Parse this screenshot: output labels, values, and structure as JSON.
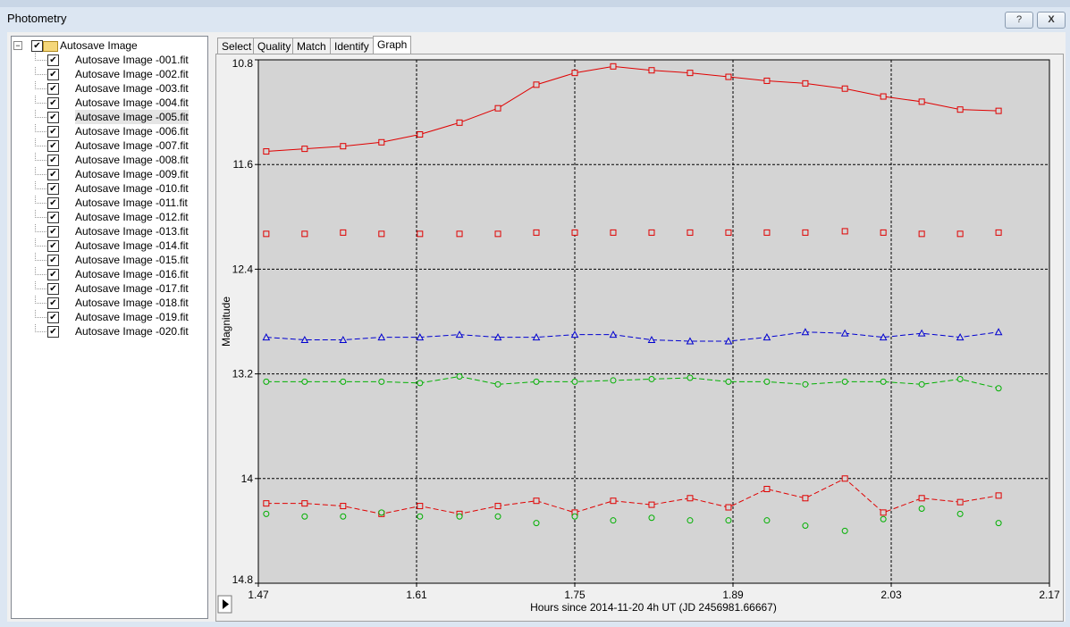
{
  "window": {
    "title": "Photometry",
    "help": "?",
    "close": "X"
  },
  "tree": {
    "root": "Autosave Image",
    "items": [
      "Autosave Image -001.fit",
      "Autosave Image -002.fit",
      "Autosave Image -003.fit",
      "Autosave Image -004.fit",
      "Autosave Image -005.fit",
      "Autosave Image -006.fit",
      "Autosave Image -007.fit",
      "Autosave Image -008.fit",
      "Autosave Image -009.fit",
      "Autosave Image -010.fit",
      "Autosave Image -011.fit",
      "Autosave Image -012.fit",
      "Autosave Image -013.fit",
      "Autosave Image -014.fit",
      "Autosave Image -015.fit",
      "Autosave Image -016.fit",
      "Autosave Image -017.fit",
      "Autosave Image -018.fit",
      "Autosave Image -019.fit",
      "Autosave Image -020.fit"
    ]
  },
  "tabs": [
    "Select",
    "Quality",
    "Match",
    "Identify",
    "Graph"
  ],
  "active_tab": 4,
  "chart_data": {
    "type": "scatter",
    "xlabel": "Hours since 2014-11-20 4h UT (JD 2456981.66667)",
    "ylabel": "Magnitude",
    "x": [
      1.477,
      1.511,
      1.545,
      1.579,
      1.613,
      1.648,
      1.682,
      1.716,
      1.75,
      1.784,
      1.818,
      1.852,
      1.886,
      1.92,
      1.954,
      1.989,
      2.023,
      2.057,
      2.091,
      2.125
    ],
    "xlim": [
      1.47,
      2.17
    ],
    "xticks": [
      1.47,
      1.61,
      1.75,
      1.89,
      2.03,
      2.17
    ],
    "ylim": [
      14.8,
      10.8
    ],
    "yticks": [
      10.8,
      11.6,
      12.4,
      13.2,
      14,
      14.8
    ],
    "y_inverted": true,
    "grid": true,
    "plot_background": "#d4d4d4",
    "series": [
      {
        "color": "#e00000",
        "marker": "square",
        "line": "solid",
        "values": [
          11.5,
          11.48,
          11.46,
          11.43,
          11.37,
          11.28,
          11.17,
          10.99,
          10.9,
          10.85,
          10.88,
          10.9,
          10.93,
          10.96,
          10.98,
          11.02,
          11.08,
          11.12,
          11.18,
          11.19
        ]
      },
      {
        "color": "#e00000",
        "marker": "square",
        "line": "none",
        "values": [
          12.13,
          12.13,
          12.12,
          12.13,
          12.13,
          12.13,
          12.13,
          12.12,
          12.12,
          12.12,
          12.12,
          12.12,
          12.12,
          12.12,
          12.12,
          12.11,
          12.12,
          12.13,
          12.13,
          12.12
        ]
      },
      {
        "color": "#0000d0",
        "marker": "triangle",
        "line": "dashed",
        "values": [
          12.92,
          12.94,
          12.94,
          12.92,
          12.92,
          12.9,
          12.92,
          12.92,
          12.9,
          12.9,
          12.94,
          12.95,
          12.95,
          12.92,
          12.88,
          12.89,
          12.92,
          12.89,
          12.92,
          12.88
        ]
      },
      {
        "color": "#00b000",
        "marker": "circle",
        "line": "dashed",
        "values": [
          13.26,
          13.26,
          13.26,
          13.26,
          13.27,
          13.22,
          13.28,
          13.26,
          13.26,
          13.25,
          13.24,
          13.23,
          13.26,
          13.26,
          13.28,
          13.26,
          13.26,
          13.28,
          13.24,
          13.31
        ]
      },
      {
        "color": "#e00000",
        "marker": "square",
        "line": "dashed",
        "values": [
          14.19,
          14.19,
          14.21,
          14.27,
          14.21,
          14.27,
          14.21,
          14.17,
          14.26,
          14.17,
          14.2,
          14.15,
          14.22,
          14.08,
          14.15,
          14.0,
          14.26,
          14.15,
          14.18,
          14.13
        ]
      },
      {
        "color": "#00b000",
        "marker": "circle",
        "line": "none",
        "values": [
          14.27,
          14.29,
          14.29,
          14.26,
          14.29,
          14.29,
          14.29,
          14.34,
          14.29,
          14.32,
          14.3,
          14.32,
          14.32,
          14.32,
          14.36,
          14.4,
          14.31,
          14.23,
          14.27,
          14.34
        ]
      }
    ]
  }
}
